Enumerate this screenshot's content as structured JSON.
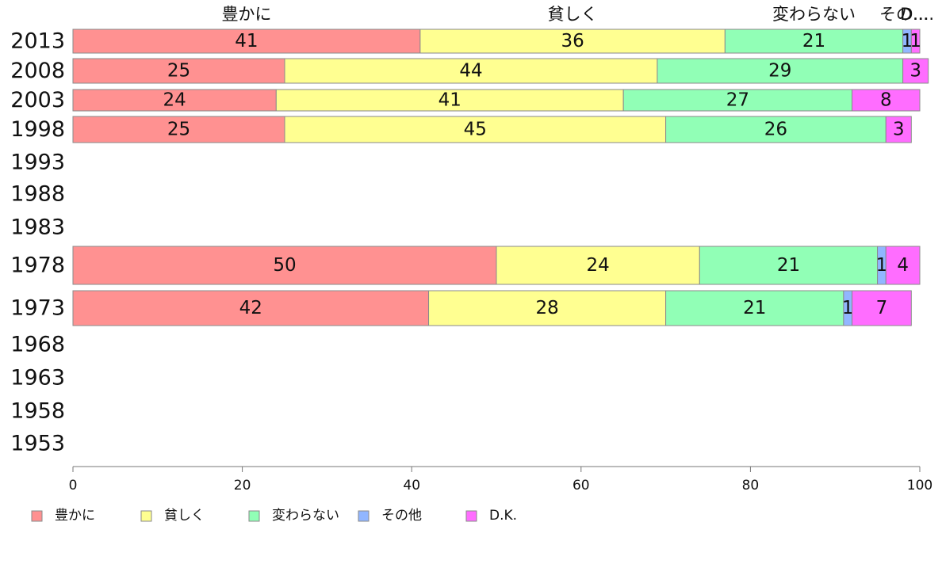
{
  "chart_data": {
    "type": "bar",
    "orientation": "horizontal",
    "stacked": true,
    "categories": [
      "2013",
      "2008",
      "2003",
      "1998",
      "1993",
      "1988",
      "1983",
      "1978",
      "1973",
      "1968",
      "1963",
      "1958",
      "1953"
    ],
    "series": [
      {
        "name": "豊かに",
        "color": "#ff9191",
        "values": [
          41,
          25,
          24,
          25,
          null,
          null,
          null,
          50,
          42,
          null,
          null,
          null,
          null
        ]
      },
      {
        "name": "貧しく",
        "color": "#ffff91",
        "values": [
          36,
          44,
          41,
          45,
          null,
          null,
          null,
          24,
          28,
          null,
          null,
          null,
          null
        ]
      },
      {
        "name": "変わらない",
        "color": "#91ffb6",
        "values": [
          21,
          29,
          27,
          26,
          null,
          null,
          null,
          21,
          21,
          null,
          null,
          null,
          null
        ]
      },
      {
        "name": "その他",
        "color": "#91b6ff",
        "values": [
          1,
          0,
          0,
          0,
          null,
          null,
          null,
          1,
          1,
          null,
          null,
          null,
          null
        ]
      },
      {
        "name": "D.K.",
        "color": "#ff6dff",
        "values": [
          1,
          3,
          8,
          3,
          null,
          null,
          null,
          4,
          7,
          null,
          null,
          null,
          null
        ]
      }
    ],
    "top_labels": [
      "豊かに",
      "貧しく",
      "変わらない",
      "その...",
      "D...."
    ],
    "xlim": [
      0,
      100
    ],
    "xticks": [
      0,
      20,
      40,
      60,
      80,
      100
    ],
    "grid": false,
    "legend": "bottom-left"
  }
}
